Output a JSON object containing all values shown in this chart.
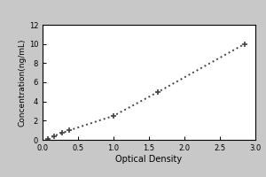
{
  "x_data": [
    0.07,
    0.16,
    0.27,
    0.38,
    1.0,
    1.63,
    2.85
  ],
  "y_data": [
    0.1,
    0.4,
    0.7,
    1.0,
    2.5,
    5.0,
    10.0
  ],
  "marker": "+",
  "marker_size": 5,
  "marker_color": "#444444",
  "line_color": "#444444",
  "line_style": "dotted",
  "line_width": 1.4,
  "marker_linewidth": 1.2,
  "xlabel": "Optical Density",
  "ylabel": "Concentration(ng/mL)",
  "xlim": [
    0,
    3.0
  ],
  "ylim": [
    0,
    12
  ],
  "xticks": [
    0,
    0.5,
    1.0,
    1.5,
    2.0,
    2.5,
    3.0
  ],
  "yticks": [
    0,
    2,
    4,
    6,
    8,
    10,
    12
  ],
  "xlabel_fontsize": 7,
  "ylabel_fontsize": 6.5,
  "tick_fontsize": 6,
  "background_color": "#ffffff",
  "figure_background": "#ffffff",
  "outer_background": "#c8c8c8"
}
